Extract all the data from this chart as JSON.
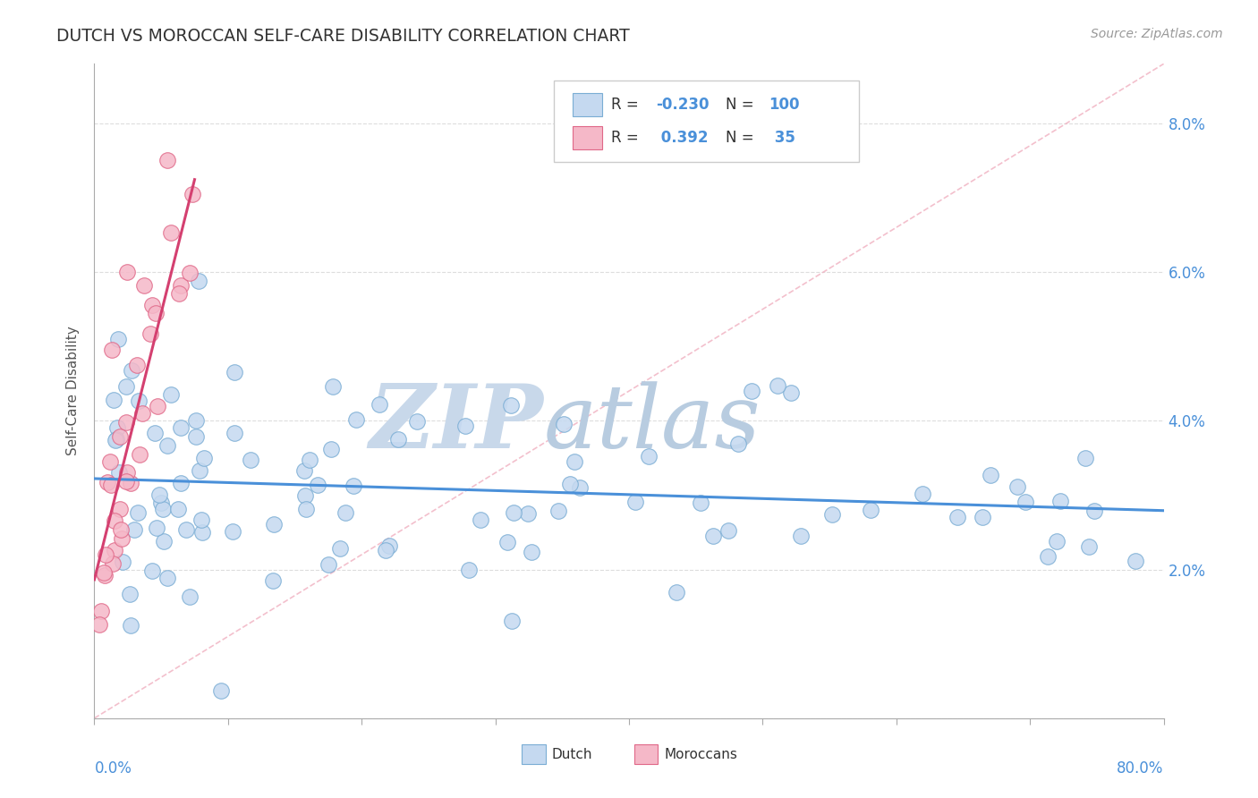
{
  "title": "DUTCH VS MOROCCAN SELF-CARE DISABILITY CORRELATION CHART",
  "source": "Source: ZipAtlas.com",
  "ylabel": "Self-Care Disability",
  "xtick_left": "0.0%",
  "xtick_right": "80.0%",
  "xlim": [
    0.0,
    0.8
  ],
  "ylim": [
    0.0,
    0.088
  ],
  "yticks": [
    0.0,
    0.02,
    0.04,
    0.06,
    0.08
  ],
  "ytick_labels": [
    "",
    "2.0%",
    "4.0%",
    "6.0%",
    "8.0%"
  ],
  "dutch_R": "-0.230",
  "dutch_N": "100",
  "moroccan_R": "0.392",
  "moroccan_N": "35",
  "dutch_fill": "#c5d9f0",
  "dutch_edge": "#7aadd4",
  "moroccan_fill": "#f5b8c8",
  "moroccan_edge": "#e06888",
  "trendline_dutch": "#4a90d9",
  "trendline_moroccan": "#d44070",
  "diag_color": "#f0b0c0",
  "grid_color": "#dddddd",
  "watermark_zip_color": "#c8d8ea",
  "watermark_atlas_color": "#b8cce0",
  "background": "#ffffff",
  "title_color": "#333333",
  "axis_label_color": "#4a90d9",
  "legend_r_color": "#4a90d9",
  "seed": 77
}
